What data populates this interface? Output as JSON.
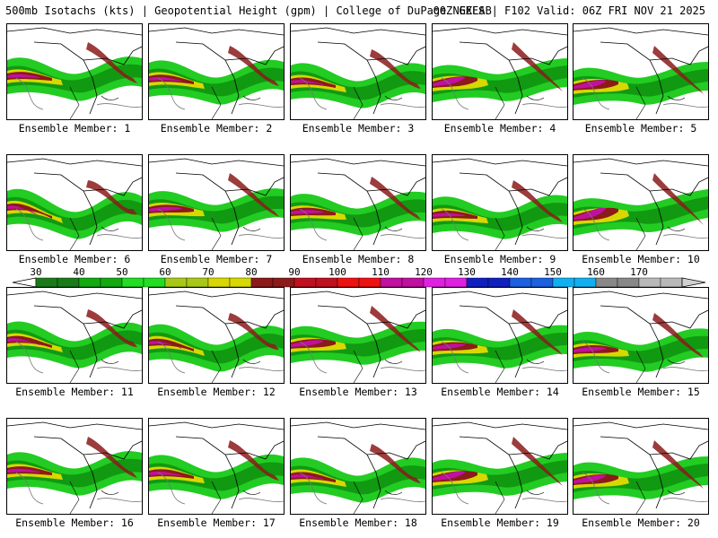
{
  "header": {
    "left": "500mb Isotachs (kts) | Geopotential Height (gpm) | College of DuPage NEXLAB",
    "right": "00Z GEFS | F102 Valid: 06Z FRI NOV 21 2025"
  },
  "colorbar": {
    "labels": [
      "30",
      "40",
      "50",
      "60",
      "70",
      "80",
      "90",
      "100",
      "110",
      "120",
      "130",
      "140",
      "150",
      "160",
      "170"
    ],
    "colors": [
      "#1a7a1a",
      "#11aa11",
      "#22dd22",
      "#a8c818",
      "#d8d800",
      "#8b1a1a",
      "#c01020",
      "#ee1111",
      "#c010a0",
      "#e020e0",
      "#1020c0",
      "#1a60e0",
      "#10b0f0",
      "#888888",
      "#b8b8b8"
    ]
  },
  "panels": [
    {
      "label": "Ensemble Member: 1"
    },
    {
      "label": "Ensemble Member: 2"
    },
    {
      "label": "Ensemble Member: 3"
    },
    {
      "label": "Ensemble Member: 4"
    },
    {
      "label": "Ensemble Member: 5"
    },
    {
      "label": "Ensemble Member: 6"
    },
    {
      "label": "Ensemble Member: 7"
    },
    {
      "label": "Ensemble Member: 8"
    },
    {
      "label": "Ensemble Member: 9"
    },
    {
      "label": "Ensemble Member: 10"
    },
    {
      "label": "Ensemble Member: 11"
    },
    {
      "label": "Ensemble Member: 12"
    },
    {
      "label": "Ensemble Member: 13"
    },
    {
      "label": "Ensemble Member: 14"
    },
    {
      "label": "Ensemble Member: 15"
    },
    {
      "label": "Ensemble Member: 16"
    },
    {
      "label": "Ensemble Member: 17"
    },
    {
      "label": "Ensemble Member: 18"
    },
    {
      "label": "Ensemble Member: 19"
    },
    {
      "label": "Ensemble Member: 20"
    }
  ]
}
